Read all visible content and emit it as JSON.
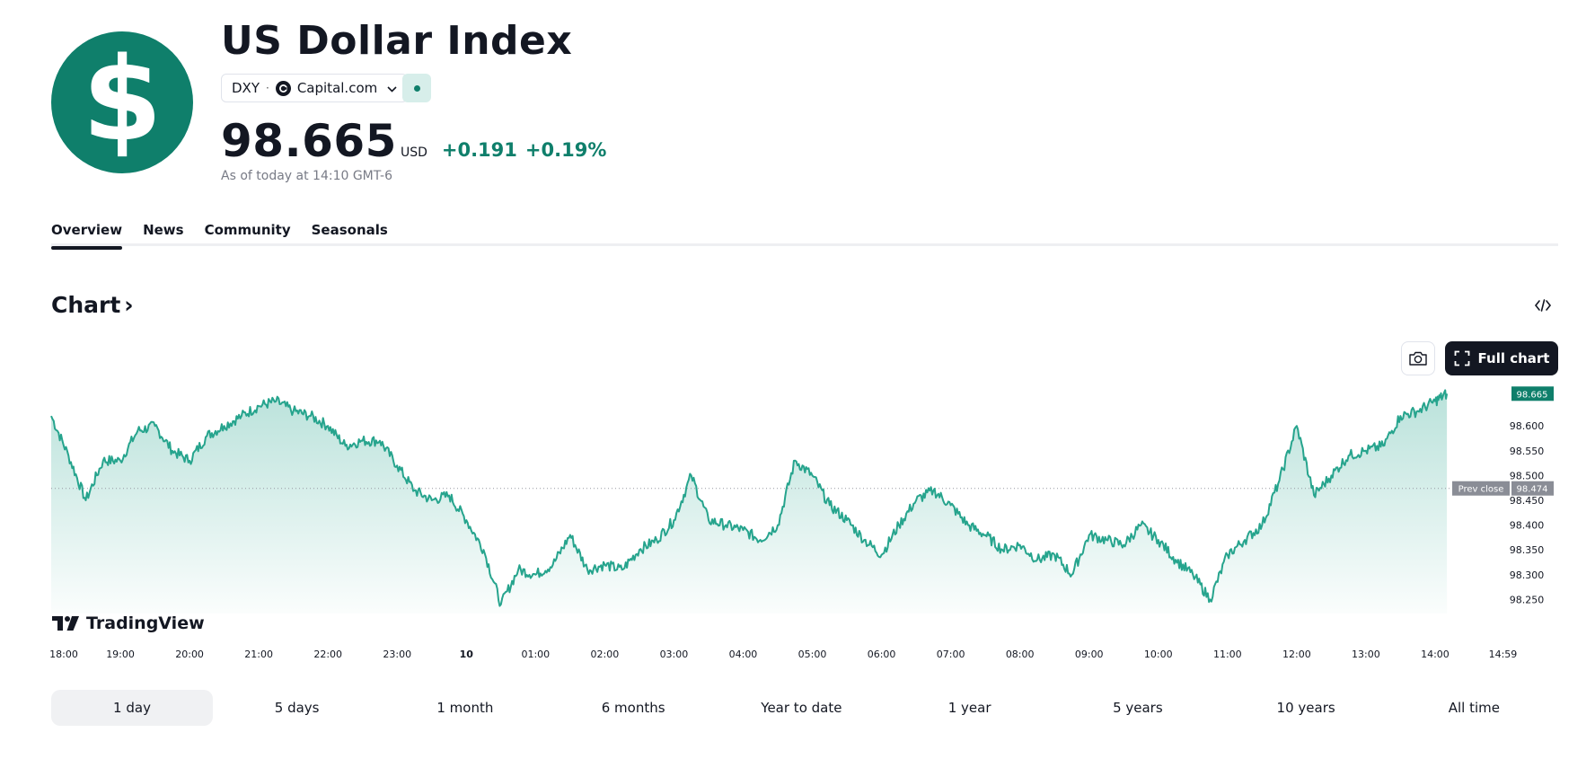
{
  "header": {
    "logo_glyph": "$",
    "title": "US Dollar Index",
    "symbol": "DXY",
    "separator": "·",
    "exchange": "Capital.com",
    "price": "98.665",
    "currency": "USD",
    "change_abs": "+0.191",
    "change_pct": "+0.19%",
    "as_of": "As of today at 14:10 GMT-6"
  },
  "tabs": [
    {
      "label": "Overview"
    },
    {
      "label": "News"
    },
    {
      "label": "Community"
    },
    {
      "label": "Seasonals"
    }
  ],
  "chart_section": {
    "heading": "Chart",
    "heading_chevron": "›",
    "full_chart_label": "Full chart",
    "brand": "TradingView"
  },
  "colors": {
    "accent": "#0f7f6b",
    "line": "#26a48d",
    "text": "#131722",
    "muted": "#787b86"
  },
  "chart_data": {
    "type": "area",
    "title": "US Dollar Index (DXY) 1 day",
    "ylim": [
      98.2,
      98.68
    ],
    "y_ticks": [
      "98.250",
      "98.300",
      "98.350",
      "98.400",
      "98.450",
      "98.500",
      "98.550",
      "98.600"
    ],
    "x_ticks": [
      "18:00",
      "19:00",
      "20:00",
      "21:00",
      "22:00",
      "23:00",
      "10",
      "01:00",
      "02:00",
      "03:00",
      "04:00",
      "05:00",
      "06:00",
      "07:00",
      "08:00",
      "09:00",
      "10:00",
      "11:00",
      "12:00",
      "13:00",
      "14:00",
      "14:59"
    ],
    "x_range_hours": [
      0,
      21
    ],
    "prev_close": 98.474,
    "prev_close_label": "Prev close",
    "prev_close_value": "98.474",
    "last_price": "98.665",
    "series": [
      {
        "name": "DXY",
        "x": [
          0,
          0.25,
          0.5,
          0.75,
          1,
          1.25,
          1.5,
          1.75,
          2,
          2.25,
          2.5,
          2.75,
          3,
          3.25,
          3.5,
          3.75,
          4,
          4.25,
          4.5,
          4.75,
          5,
          5.25,
          5.5,
          5.75,
          6,
          6.25,
          6.5,
          6.75,
          7,
          7.25,
          7.5,
          7.75,
          8,
          8.25,
          8.5,
          8.75,
          9,
          9.25,
          9.5,
          9.75,
          10,
          10.25,
          10.5,
          10.75,
          11,
          11.25,
          11.5,
          11.75,
          12,
          12.25,
          12.5,
          12.75,
          13,
          13.25,
          13.5,
          13.75,
          14,
          14.25,
          14.5,
          14.75,
          15,
          15.25,
          15.5,
          15.75,
          16,
          16.25,
          16.5,
          16.75,
          17,
          17.25,
          17.5,
          17.75,
          18,
          18.25,
          18.5,
          18.75,
          19,
          19.25,
          19.5,
          19.75,
          20,
          20.17
        ],
        "values": [
          98.62,
          98.54,
          98.45,
          98.53,
          98.53,
          98.59,
          98.6,
          98.55,
          98.53,
          98.58,
          98.6,
          98.62,
          98.64,
          98.65,
          98.63,
          98.62,
          98.6,
          98.56,
          98.57,
          98.57,
          98.52,
          98.47,
          98.45,
          98.46,
          98.41,
          98.35,
          98.24,
          98.31,
          98.3,
          98.32,
          98.38,
          98.31,
          98.32,
          98.31,
          98.35,
          98.37,
          98.41,
          98.5,
          98.41,
          98.4,
          98.39,
          98.37,
          98.4,
          98.53,
          98.5,
          98.44,
          98.41,
          98.37,
          98.34,
          98.4,
          98.45,
          98.47,
          98.44,
          98.4,
          98.38,
          98.35,
          98.36,
          98.33,
          98.34,
          98.3,
          98.38,
          98.37,
          98.36,
          98.4,
          98.37,
          98.33,
          98.3,
          98.25,
          98.34,
          98.37,
          98.4,
          98.49,
          98.6,
          98.46,
          98.5,
          98.54,
          98.55,
          98.56,
          98.62,
          98.63,
          98.65,
          98.665
        ]
      }
    ]
  },
  "time_ranges": [
    {
      "label": "1 day",
      "active": true
    },
    {
      "label": "5 days"
    },
    {
      "label": "1 month"
    },
    {
      "label": "6 months"
    },
    {
      "label": "Year to date"
    },
    {
      "label": "1 year"
    },
    {
      "label": "5 years"
    },
    {
      "label": "10 years"
    },
    {
      "label": "All time"
    }
  ]
}
